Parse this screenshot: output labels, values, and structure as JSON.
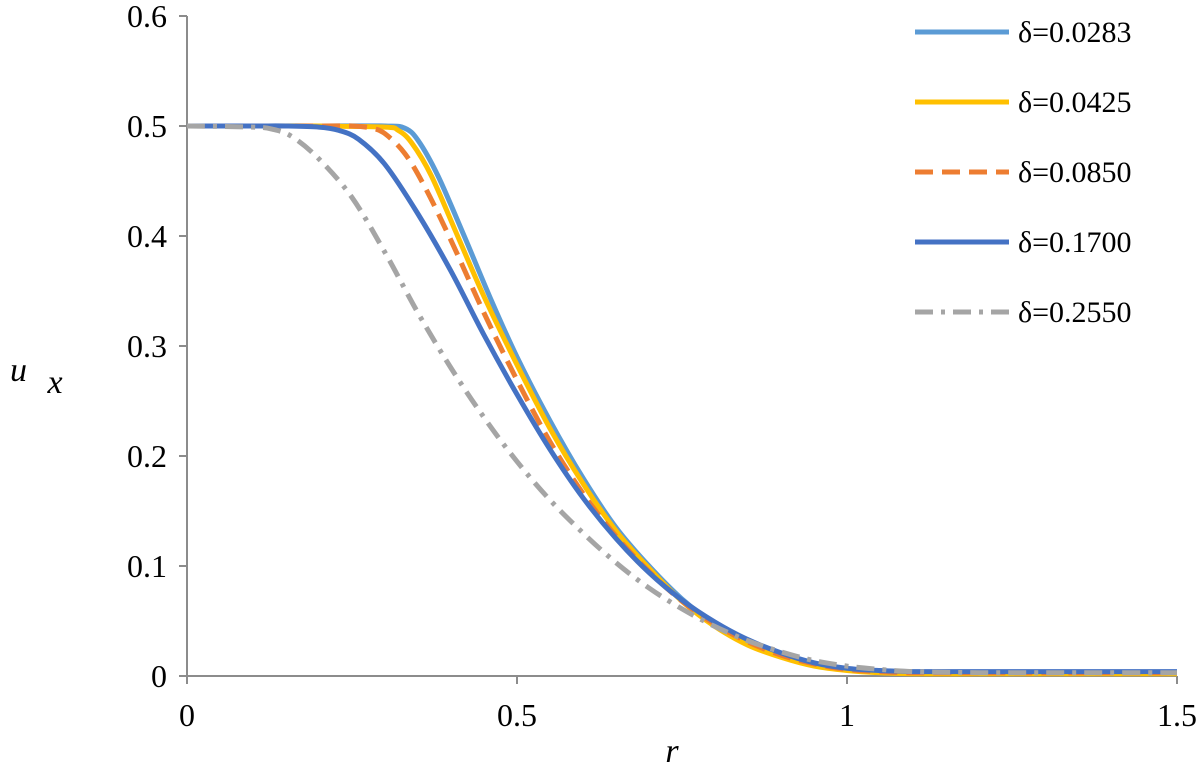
{
  "chart_data": {
    "type": "line",
    "xlabel": "r",
    "ylabel": "u",
    "ylabel_sub": "x",
    "xlim": [
      0,
      1.5
    ],
    "ylim": [
      0,
      0.6
    ],
    "x_ticks": [
      0,
      0.5,
      1,
      1.5
    ],
    "y_ticks": [
      0,
      0.1,
      0.2,
      0.3,
      0.4,
      0.5,
      0.6
    ],
    "x_tick_labels": [
      "0",
      "0.5",
      "1",
      "1.5"
    ],
    "y_tick_labels": [
      "0",
      "0.1",
      "0.2",
      "0.3",
      "0.4",
      "0.5",
      "0.6"
    ],
    "grid": false,
    "legend_position": "top-right",
    "series": [
      {
        "name": "δ=0.0283",
        "color": "#5B9BD5",
        "dash": "solid",
        "x": [
          0,
          0.1,
          0.2,
          0.3,
          0.33,
          0.35,
          0.38,
          0.42,
          0.46,
          0.5,
          0.55,
          0.6,
          0.65,
          0.7,
          0.75,
          0.8,
          0.85,
          0.9,
          0.95,
          1.0,
          1.05,
          1.1,
          1.2,
          1.3,
          1.4,
          1.5
        ],
        "y": [
          0.5,
          0.5,
          0.5,
          0.5,
          0.498,
          0.487,
          0.455,
          0.4,
          0.343,
          0.29,
          0.232,
          0.18,
          0.135,
          0.1,
          0.07,
          0.047,
          0.03,
          0.018,
          0.01,
          0.006,
          0.004,
          0.003,
          0.003,
          0.003,
          0.003,
          0.003
        ]
      },
      {
        "name": "δ=0.0425",
        "color": "#FFC000",
        "dash": "solid",
        "x": [
          0,
          0.1,
          0.2,
          0.3,
          0.32,
          0.34,
          0.37,
          0.41,
          0.45,
          0.5,
          0.55,
          0.6,
          0.65,
          0.7,
          0.75,
          0.8,
          0.85,
          0.9,
          0.95,
          1.0,
          1.05,
          1.1,
          1.2,
          1.3,
          1.4,
          1.5
        ],
        "y": [
          0.5,
          0.5,
          0.5,
          0.499,
          0.496,
          0.485,
          0.455,
          0.4,
          0.345,
          0.283,
          0.225,
          0.175,
          0.132,
          0.098,
          0.068,
          0.045,
          0.028,
          0.017,
          0.009,
          0.005,
          0.003,
          0.002,
          0.002,
          0.002,
          0.002,
          0.002
        ]
      },
      {
        "name": "δ=0.0850",
        "color": "#ED7D31",
        "dash": "dashed",
        "x": [
          0,
          0.1,
          0.2,
          0.25,
          0.28,
          0.3,
          0.33,
          0.36,
          0.4,
          0.45,
          0.5,
          0.55,
          0.6,
          0.65,
          0.7,
          0.75,
          0.8,
          0.85,
          0.9,
          0.95,
          1.0,
          1.05,
          1.1,
          1.2,
          1.3,
          1.4,
          1.5
        ],
        "y": [
          0.5,
          0.5,
          0.5,
          0.5,
          0.498,
          0.493,
          0.475,
          0.445,
          0.396,
          0.33,
          0.269,
          0.213,
          0.166,
          0.127,
          0.095,
          0.068,
          0.047,
          0.031,
          0.019,
          0.011,
          0.006,
          0.004,
          0.003,
          0.003,
          0.003,
          0.003,
          0.003
        ]
      },
      {
        "name": "δ=0.1700",
        "color": "#4472C4",
        "dash": "solid",
        "x": [
          0,
          0.1,
          0.15,
          0.2,
          0.23,
          0.26,
          0.3,
          0.35,
          0.4,
          0.45,
          0.5,
          0.55,
          0.6,
          0.65,
          0.7,
          0.75,
          0.8,
          0.85,
          0.9,
          0.95,
          1.0,
          1.05,
          1.1,
          1.2,
          1.3,
          1.4,
          1.5
        ],
        "y": [
          0.5,
          0.5,
          0.5,
          0.499,
          0.496,
          0.488,
          0.465,
          0.42,
          0.368,
          0.31,
          0.256,
          0.206,
          0.162,
          0.125,
          0.094,
          0.069,
          0.049,
          0.033,
          0.021,
          0.012,
          0.007,
          0.005,
          0.004,
          0.004,
          0.004,
          0.004,
          0.004
        ]
      },
      {
        "name": "δ=0.2550",
        "color": "#A5A5A5",
        "dash": "dashdot",
        "x": [
          0,
          0.1,
          0.13,
          0.16,
          0.2,
          0.25,
          0.3,
          0.35,
          0.4,
          0.45,
          0.5,
          0.55,
          0.6,
          0.65,
          0.7,
          0.75,
          0.8,
          0.85,
          0.9,
          0.95,
          1.0,
          1.05,
          1.1,
          1.2,
          1.3,
          1.4,
          1.5
        ],
        "y": [
          0.5,
          0.499,
          0.497,
          0.49,
          0.47,
          0.435,
          0.385,
          0.33,
          0.28,
          0.235,
          0.195,
          0.16,
          0.13,
          0.103,
          0.08,
          0.061,
          0.045,
          0.032,
          0.022,
          0.014,
          0.009,
          0.006,
          0.004,
          0.003,
          0.003,
          0.003,
          0.003
        ]
      }
    ]
  }
}
